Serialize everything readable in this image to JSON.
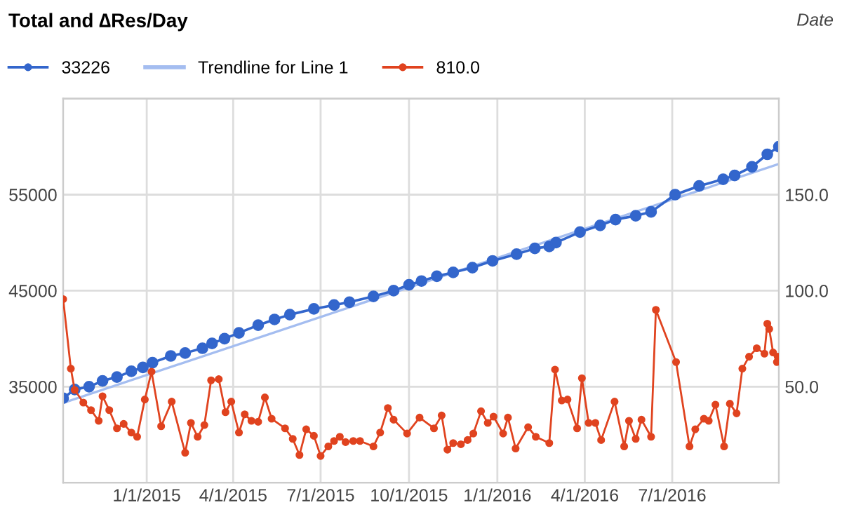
{
  "chart_data": {
    "type": "line",
    "title": "Total and ∆Res/Day",
    "xlabel": "Date",
    "xlim": [
      "2014-10-06",
      "2016-10-20"
    ],
    "xticks": [
      {
        "value": "2015-01-01",
        "label": "1/1/2015"
      },
      {
        "value": "2015-04-01",
        "label": "4/1/2015"
      },
      {
        "value": "2015-07-01",
        "label": "7/1/2015"
      },
      {
        "value": "2015-10-01",
        "label": "10/1/2015"
      },
      {
        "value": "2016-01-01",
        "label": "1/1/2016"
      },
      {
        "value": "2016-04-01",
        "label": "4/1/2016"
      },
      {
        "value": "2016-07-01",
        "label": "7/1/2016"
      }
    ],
    "ylim": [
      25000,
      65000
    ],
    "yticks": [
      35000,
      45000,
      55000
    ],
    "y2lim": [
      0,
      200
    ],
    "y2ticks": [
      {
        "value": 50,
        "label": "50.0"
      },
      {
        "value": 100,
        "label": "100.0"
      },
      {
        "value": 150,
        "label": "150.0"
      }
    ],
    "grid": true,
    "legend": "top left",
    "marker": "circle",
    "line_style": "solid",
    "series": [
      {
        "name": "33226",
        "color": "#3366cc",
        "x": [
          "2014-10-06",
          "2014-10-18",
          "2014-11-02",
          "2014-11-16",
          "2014-12-01",
          "2014-12-16",
          "2014-12-28",
          "2015-01-07",
          "2015-01-26",
          "2015-02-10",
          "2015-02-28",
          "2015-03-10",
          "2015-03-23",
          "2015-04-07",
          "2015-04-27",
          "2015-05-14",
          "2015-05-30",
          "2015-06-24",
          "2015-07-15",
          "2015-07-31",
          "2015-08-25",
          "2015-09-15",
          "2015-10-01",
          "2015-10-14",
          "2015-10-30",
          "2015-11-16",
          "2015-12-06",
          "2015-12-27",
          "2016-01-21",
          "2016-02-09",
          "2016-02-24",
          "2016-03-02",
          "2016-03-27",
          "2016-04-17",
          "2016-05-03",
          "2016-05-24",
          "2016-06-09",
          "2016-07-04",
          "2016-07-29",
          "2016-08-23",
          "2016-09-04",
          "2016-09-22",
          "2016-10-08",
          "2016-10-20"
        ],
        "values": [
          33800,
          34700,
          35000,
          35600,
          36000,
          36600,
          37000,
          37500,
          38200,
          38500,
          39000,
          39500,
          40000,
          40600,
          41400,
          42000,
          42500,
          43100,
          43500,
          43800,
          44400,
          45000,
          45600,
          46000,
          46500,
          46900,
          47400,
          48100,
          48800,
          49400,
          49600,
          50000,
          51100,
          51800,
          52400,
          52800,
          53200,
          55000,
          55900,
          56600,
          57000,
          57900,
          59200,
          60000
        ]
      },
      {
        "name": "Trendline for Line 1",
        "color": "#a4bdf0",
        "marker": "none",
        "x": [
          "2014-10-06",
          "2016-10-20"
        ],
        "values": [
          33300,
          58200
        ]
      },
      {
        "name": "810.0",
        "color": "#e0431f",
        "axis": "y2",
        "x": [
          "2014-10-06",
          "2014-10-14",
          "2014-10-18",
          "2014-10-27",
          "2014-11-04",
          "2014-11-12",
          "2014-11-16",
          "2014-11-23",
          "2014-12-01",
          "2014-12-08",
          "2014-12-16",
          "2014-12-22",
          "2014-12-30",
          "2015-01-06",
          "2015-01-16",
          "2015-01-27",
          "2015-02-10",
          "2015-02-16",
          "2015-02-23",
          "2015-03-02",
          "2015-03-09",
          "2015-03-17",
          "2015-03-24",
          "2015-03-30",
          "2015-04-07",
          "2015-04-13",
          "2015-04-20",
          "2015-04-27",
          "2015-05-04",
          "2015-05-11",
          "2015-05-25",
          "2015-06-02",
          "2015-06-09",
          "2015-06-16",
          "2015-06-24",
          "2015-07-01",
          "2015-07-09",
          "2015-07-15",
          "2015-07-21",
          "2015-07-27",
          "2015-08-04",
          "2015-08-11",
          "2015-08-25",
          "2015-09-01",
          "2015-09-09",
          "2015-09-15",
          "2015-09-29",
          "2015-10-12",
          "2015-10-27",
          "2015-11-04",
          "2015-11-10",
          "2015-11-16",
          "2015-11-24",
          "2015-12-01",
          "2015-12-07",
          "2015-12-15",
          "2015-12-22",
          "2015-12-28",
          "2016-01-07",
          "2016-01-12",
          "2016-01-20",
          "2016-02-02",
          "2016-02-10",
          "2016-02-24",
          "2016-03-01",
          "2016-03-08",
          "2016-03-14",
          "2016-03-24",
          "2016-03-29",
          "2016-04-05",
          "2016-04-12",
          "2016-04-18",
          "2016-05-02",
          "2016-05-12",
          "2016-05-17",
          "2016-05-24",
          "2016-05-30",
          "2016-06-09",
          "2016-06-14",
          "2016-07-05",
          "2016-07-19",
          "2016-07-25",
          "2016-08-03",
          "2016-08-08",
          "2016-08-15",
          "2016-08-24",
          "2016-08-30",
          "2016-09-06",
          "2016-09-12",
          "2016-09-19",
          "2016-09-27",
          "2016-10-05",
          "2016-10-08",
          "2016-10-10",
          "2016-10-14",
          "2016-10-18",
          "2016-10-19"
        ],
        "values": [
          95.6,
          59.4,
          48.3,
          41.7,
          37.8,
          32.2,
          45,
          37.8,
          28.3,
          30.6,
          26.1,
          23.9,
          43.3,
          57.8,
          29.4,
          42.2,
          15.6,
          31.1,
          23.9,
          30,
          53.3,
          53.9,
          36.7,
          42.2,
          26.1,
          35.6,
          32.2,
          31.7,
          44.4,
          33.3,
          28.3,
          22.8,
          14.4,
          27.8,
          24.4,
          13.9,
          18.9,
          21.7,
          23.9,
          21.1,
          21.7,
          21.7,
          18.9,
          26.1,
          38.9,
          32.8,
          25.6,
          33.9,
          28.3,
          35,
          17.2,
          20.6,
          20,
          22.2,
          25.6,
          37.2,
          31.1,
          34.4,
          25.6,
          33.9,
          17.8,
          28.9,
          23.9,
          20.6,
          58.9,
          42.8,
          43.3,
          28.3,
          54.4,
          31.1,
          31.1,
          22.2,
          42.2,
          18.9,
          32.2,
          22.8,
          32.8,
          23.9,
          90,
          62.8,
          18.9,
          27.8,
          33.3,
          32.2,
          40.6,
          18.9,
          41.1,
          36.1,
          59.4,
          65.6,
          70,
          67.2,
          82.8,
          80,
          67.8,
          62.8,
          65.6
        ]
      }
    ]
  }
}
